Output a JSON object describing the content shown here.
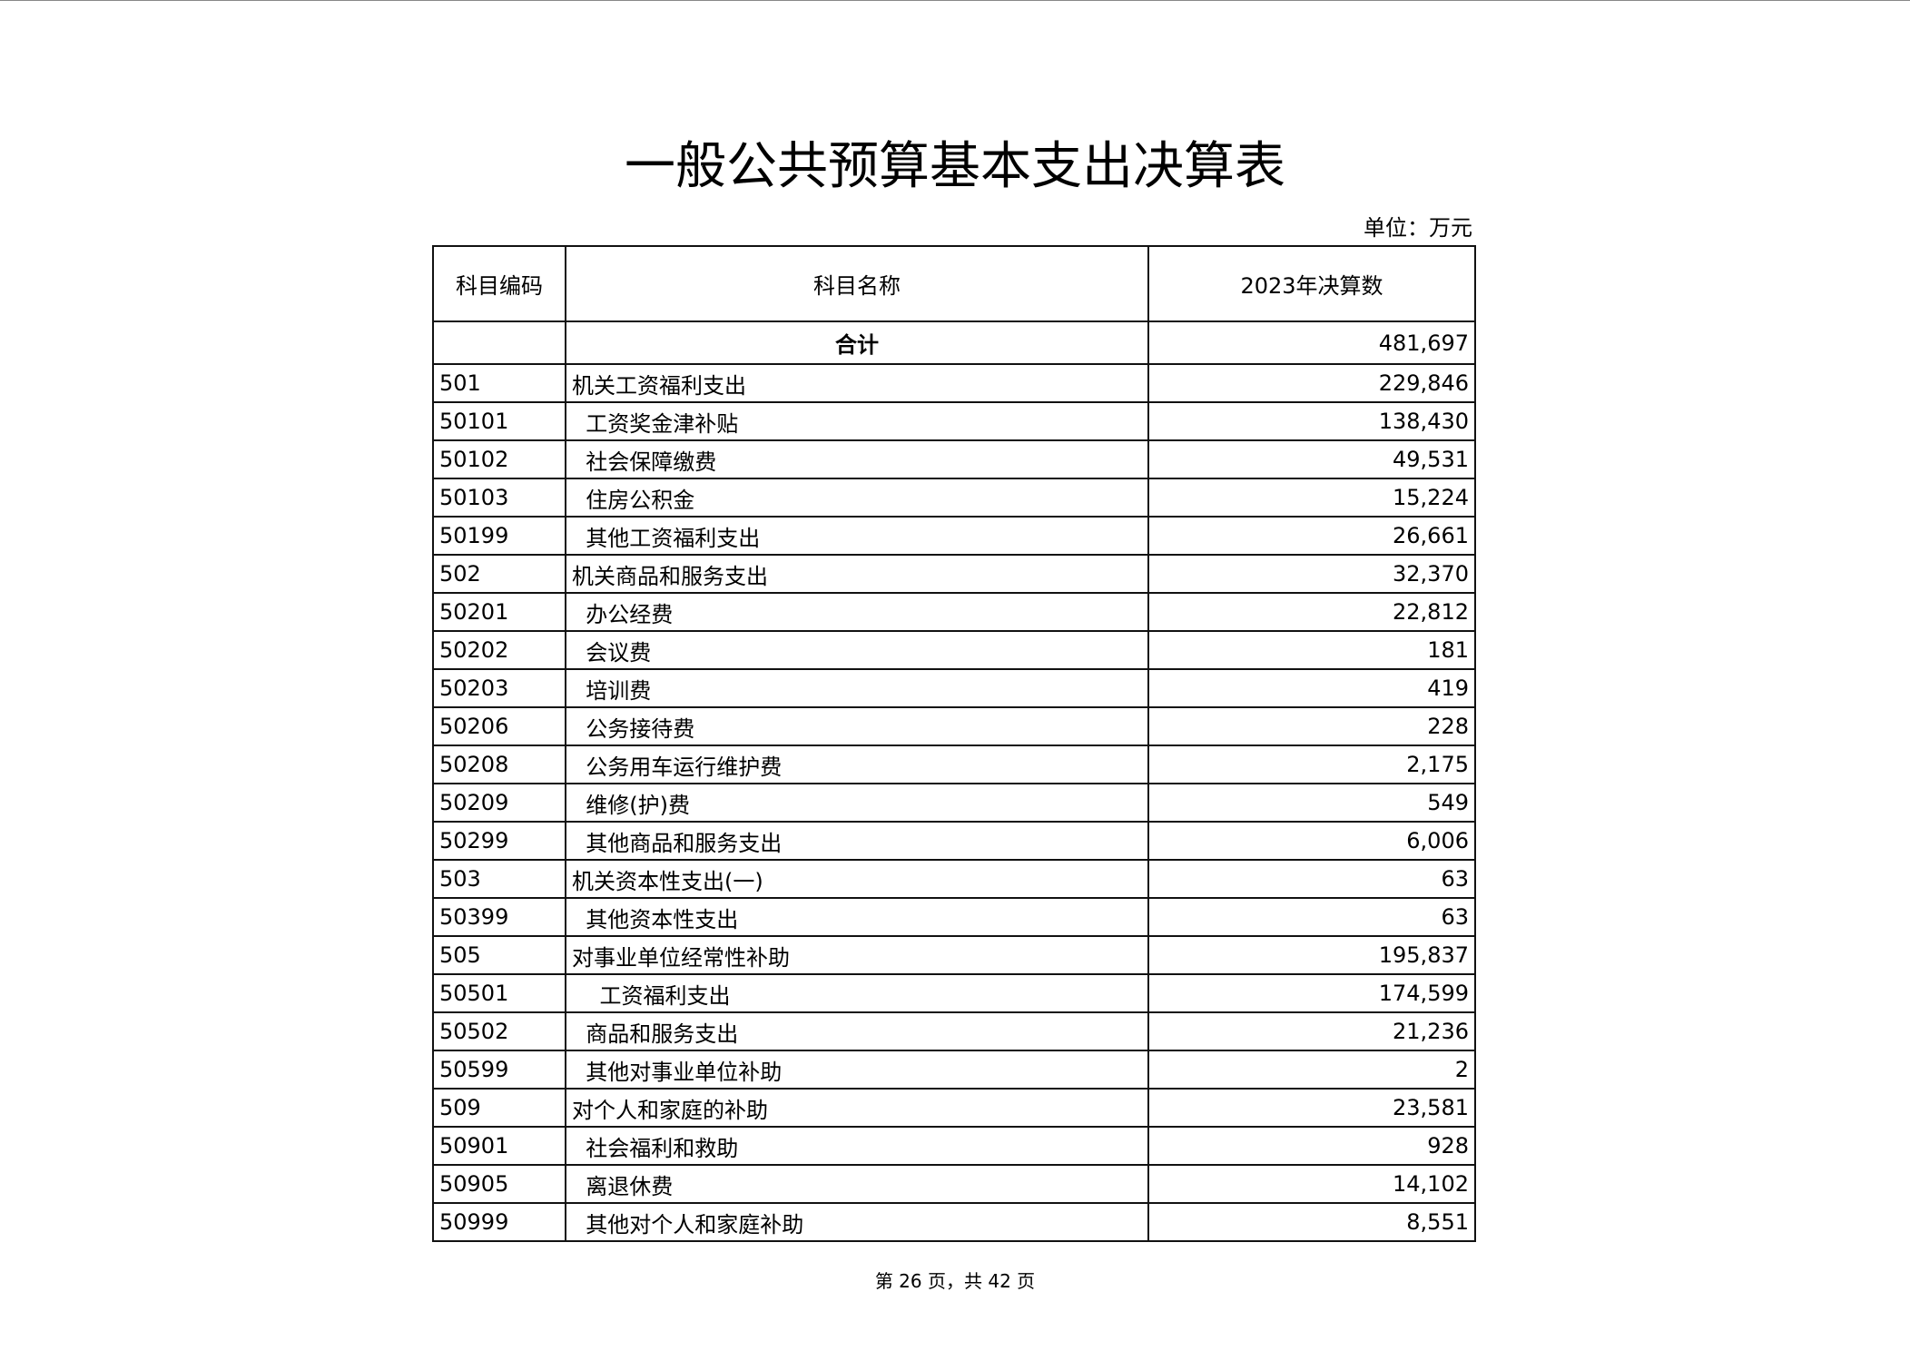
{
  "title": "一般公共预算基本支出决算表",
  "unit": "单位：万元",
  "columns": [
    "科目编码",
    "科目名称",
    "2023年决算数"
  ],
  "total": {
    "code": "",
    "name": "合计",
    "value": "481,697"
  },
  "rows": [
    {
      "code": "501",
      "name": "机关工资福利支出",
      "value": "229,846"
    },
    {
      "code": "50101",
      "name": "  工资奖金津补贴",
      "value": "138,430"
    },
    {
      "code": "50102",
      "name": "  社会保障缴费",
      "value": "49,531"
    },
    {
      "code": "50103",
      "name": "  住房公积金",
      "value": "15,224"
    },
    {
      "code": "50199",
      "name": "  其他工资福利支出",
      "value": "26,661"
    },
    {
      "code": "502",
      "name": "机关商品和服务支出",
      "value": "32,370"
    },
    {
      "code": "50201",
      "name": "  办公经费",
      "value": "22,812"
    },
    {
      "code": "50202",
      "name": "  会议费",
      "value": "181"
    },
    {
      "code": "50203",
      "name": "  培训费",
      "value": "419"
    },
    {
      "code": "50206",
      "name": "  公务接待费",
      "value": "228"
    },
    {
      "code": "50208",
      "name": "  公务用车运行维护费",
      "value": "2,175"
    },
    {
      "code": "50209",
      "name": "  维修(护)费",
      "value": "549"
    },
    {
      "code": "50299",
      "name": "  其他商品和服务支出",
      "value": "6,006"
    },
    {
      "code": "503",
      "name": "机关资本性支出(一)",
      "value": "63"
    },
    {
      "code": "50399",
      "name": "  其他资本性支出",
      "value": "63"
    },
    {
      "code": "505",
      "name": "对事业单位经常性补助",
      "value": "195,837"
    },
    {
      "code": "50501",
      "name": "    工资福利支出",
      "value": "174,599"
    },
    {
      "code": "50502",
      "name": "  商品和服务支出",
      "value": "21,236"
    },
    {
      "code": "50599",
      "name": "  其他对事业单位补助",
      "value": "2"
    },
    {
      "code": "509",
      "name": "对个人和家庭的补助",
      "value": "23,581"
    },
    {
      "code": "50901",
      "name": "  社会福利和救助",
      "value": "928"
    },
    {
      "code": "50905",
      "name": "  离退休费",
      "value": "14,102"
    },
    {
      "code": "50999",
      "name": "  其他对个人和家庭补助",
      "value": "8,551"
    }
  ],
  "footer": "第 26 页，共 42 页"
}
